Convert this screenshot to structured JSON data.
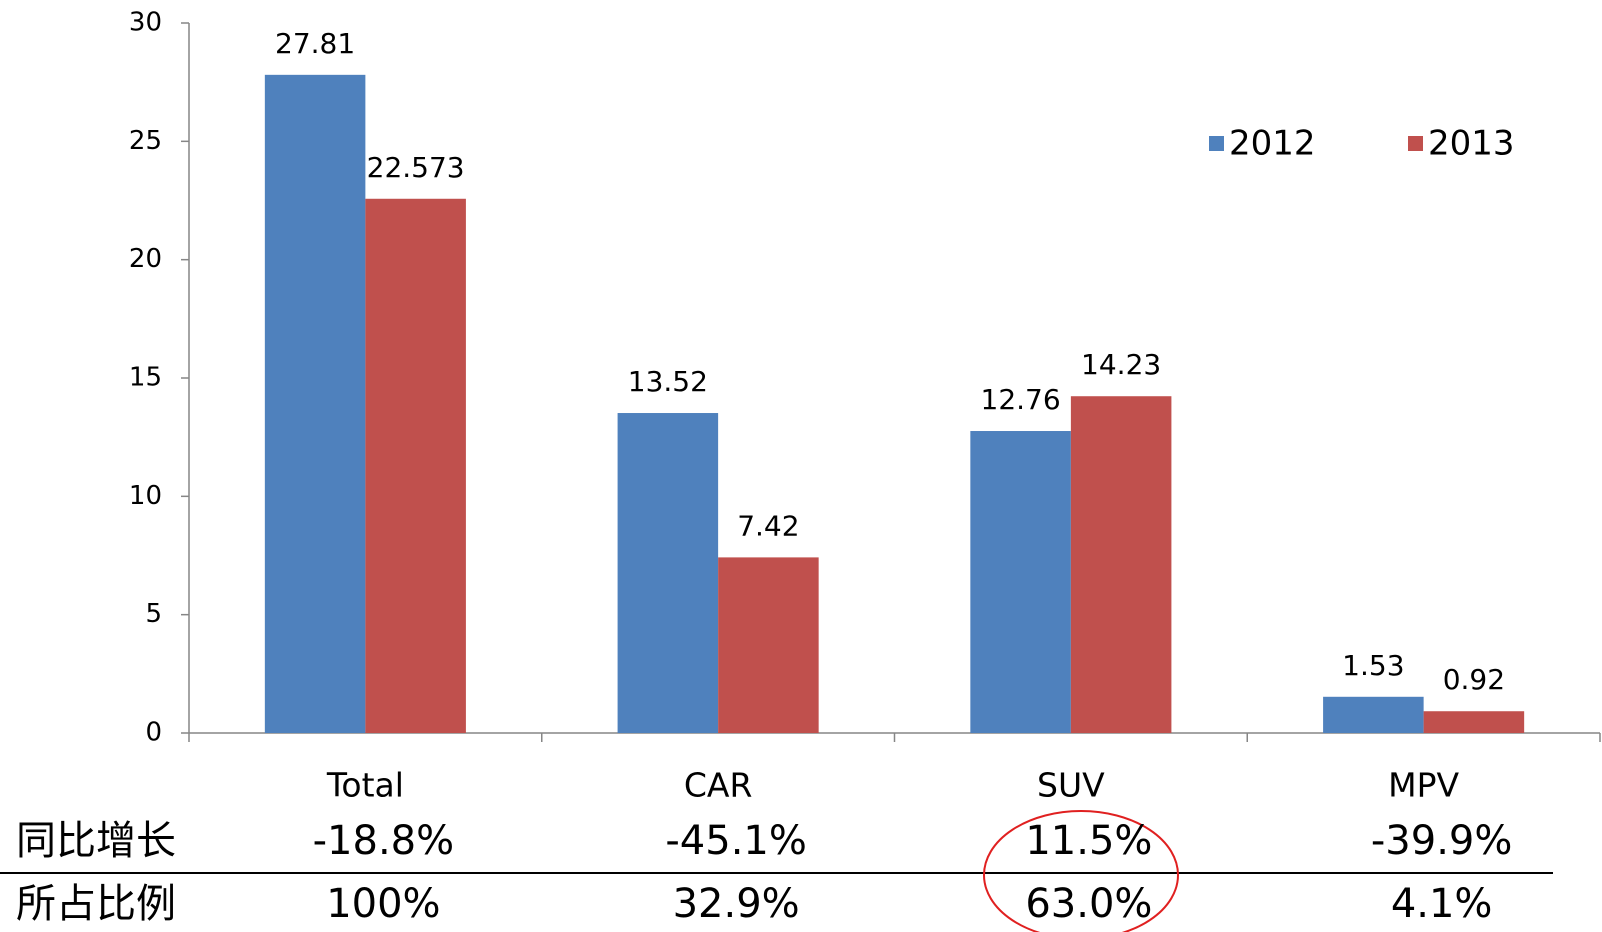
{
  "chart_data": {
    "type": "bar",
    "categories": [
      "Total",
      "CAR",
      "SUV",
      "MPV"
    ],
    "series": [
      {
        "name": "2012",
        "color": "#4f81bd",
        "values": [
          27.81,
          13.52,
          12.76,
          1.53
        ]
      },
      {
        "name": "2013",
        "color": "#c0504d",
        "values": [
          22.573,
          7.42,
          14.23,
          0.92
        ]
      }
    ],
    "ylim": [
      0,
      30
    ],
    "yticks": [
      0,
      5,
      10,
      15,
      20,
      25,
      30
    ],
    "grid": false,
    "legend": "upper right",
    "table_rows": [
      {
        "label": "同比增长",
        "values": [
          "-18.8%",
          "-45.1%",
          "11.5%",
          "-39.9%"
        ]
      },
      {
        "label": "所占比例",
        "values": [
          "100%",
          "32.9%",
          "63.0%",
          "4.1%"
        ]
      }
    ]
  }
}
